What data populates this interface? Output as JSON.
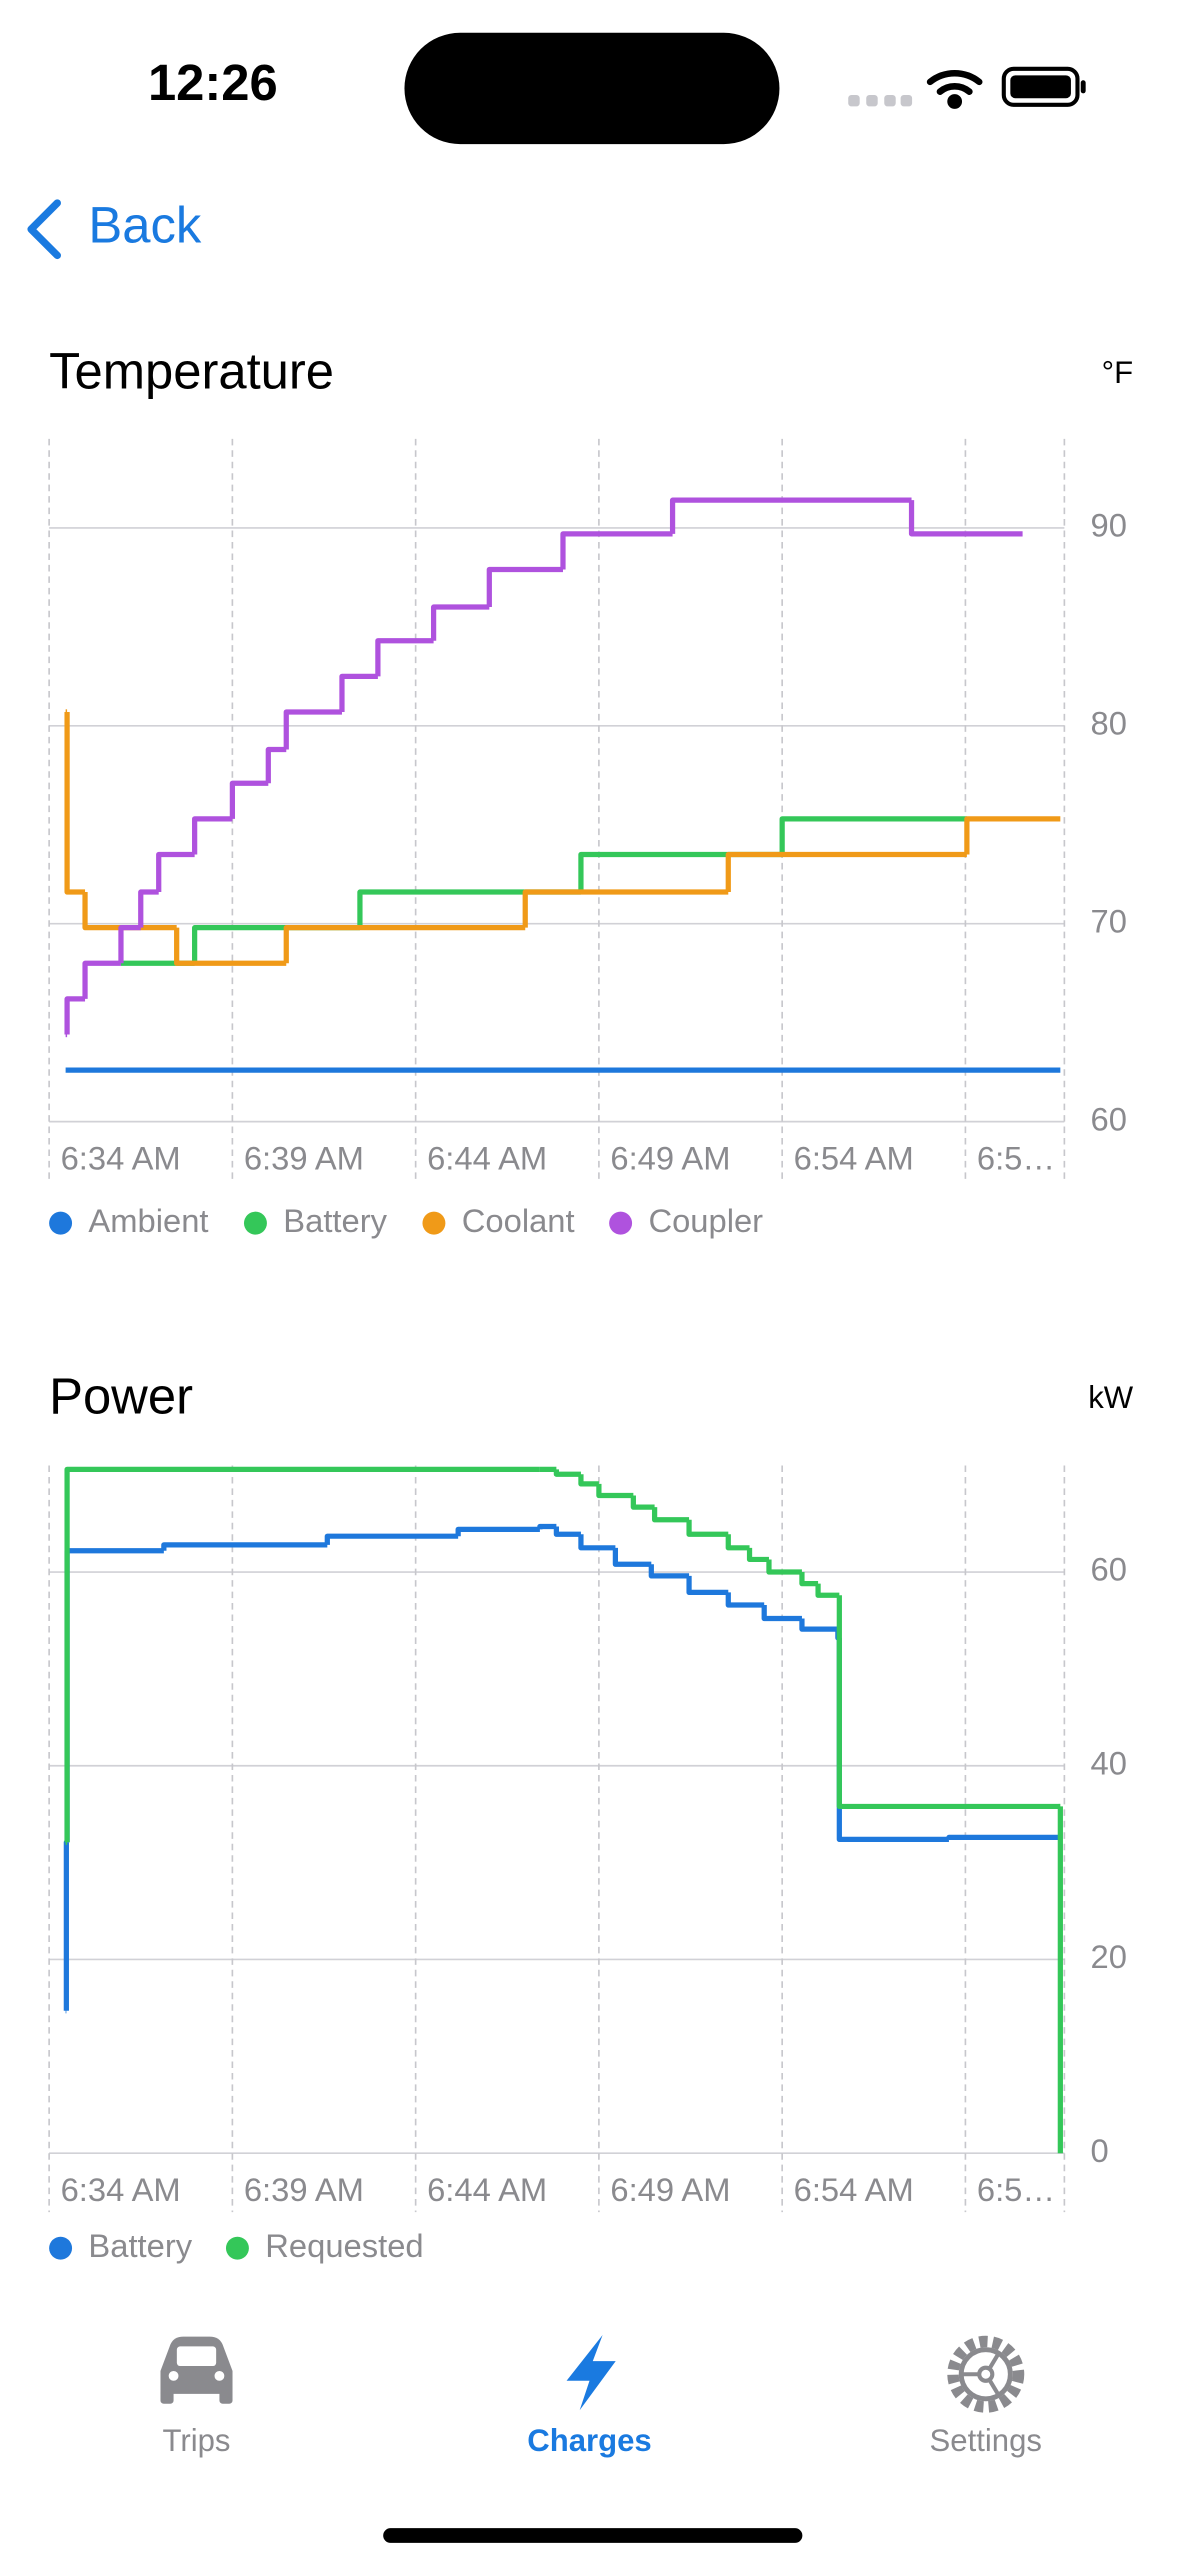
{
  "status_bar": {
    "time": "12:26"
  },
  "nav": {
    "back": "Back"
  },
  "chart_data": [
    {
      "type": "line",
      "title": "Temperature",
      "unit": "°F",
      "step": "after",
      "grid": true,
      "xlim": [
        394,
        421.7
      ],
      "ylim": [
        60,
        94.5
      ],
      "xticks": [
        {
          "value": 394,
          "label": "6:34 AM"
        },
        {
          "value": 399,
          "label": "6:39 AM"
        },
        {
          "value": 404,
          "label": "6:44 AM"
        },
        {
          "value": 409,
          "label": "6:49 AM"
        },
        {
          "value": 414,
          "label": "6:54 AM"
        },
        {
          "value": 419,
          "label": "6:5…"
        }
      ],
      "yticks": [
        60,
        70,
        80,
        90
      ],
      "series": [
        {
          "name": "Ambient",
          "color": "#1e78dc",
          "x": [
            394.45,
            421.59
          ],
          "values": [
            62.6,
            62.6
          ]
        },
        {
          "name": "Battery",
          "color": "#34c759",
          "x": [
            395.96,
            397.97,
            402.48,
            408.51,
            414.0,
            419.04
          ],
          "values": [
            68.0,
            69.8,
            71.6,
            73.5,
            75.3,
            75.3
          ]
        },
        {
          "name": "Coolant",
          "color": "#f09a18",
          "x": [
            394.45,
            394.49,
            394.98,
            397.48,
            400.47,
            406.99,
            412.53,
            419.04,
            421.59
          ],
          "values": [
            80.7,
            71.6,
            69.8,
            68.0,
            69.8,
            71.6,
            73.5,
            75.3,
            75.3
          ]
        },
        {
          "name": "Coupler",
          "color": "#af52de",
          "x": [
            394.45,
            394.49,
            394.98,
            395.96,
            396.5,
            396.99,
            397.97,
            399.0,
            399.98,
            400.47,
            401.99,
            402.97,
            404.49,
            406.01,
            408.02,
            411.01,
            417.53,
            420.56
          ],
          "values": [
            64.4,
            66.2,
            68.0,
            69.8,
            71.6,
            73.5,
            75.3,
            77.1,
            78.8,
            80.7,
            82.5,
            84.3,
            86.0,
            87.9,
            89.7,
            91.4,
            89.7,
            89.7
          ]
        }
      ]
    },
    {
      "type": "line",
      "title": "Power",
      "unit": "kW",
      "step": "after",
      "grid": true,
      "xlim": [
        394,
        421.7
      ],
      "ylim": [
        0,
        71
      ],
      "xticks": [
        {
          "value": 394,
          "label": "6:34 AM"
        },
        {
          "value": 399,
          "label": "6:39 AM"
        },
        {
          "value": 404,
          "label": "6:44 AM"
        },
        {
          "value": 409,
          "label": "6:49 AM"
        },
        {
          "value": 414,
          "label": "6:54 AM"
        },
        {
          "value": 419,
          "label": "6:5…"
        }
      ],
      "yticks": [
        0,
        20,
        40,
        60
      ],
      "series": [
        {
          "name": "Battery",
          "color": "#1e78dc",
          "x": [
            394.45,
            394.47,
            394.49,
            397.13,
            401.59,
            405.16,
            407.39,
            407.84,
            408.51,
            409.45,
            410.43,
            411.46,
            412.53,
            413.51,
            414.54,
            415.52,
            415.56,
            418.55,
            421.54
          ],
          "values": [
            14.7,
            32.1,
            62.2,
            62.8,
            63.7,
            64.4,
            64.7,
            63.9,
            62.5,
            60.8,
            59.6,
            57.9,
            56.6,
            55.2,
            54.1,
            53.2,
            32.4,
            32.6,
            32.6
          ]
        },
        {
          "name": "Requested",
          "color": "#34c759",
          "x": [
            394.45,
            394.49,
            407.39,
            407.84,
            408.51,
            409.0,
            409.94,
            410.52,
            411.46,
            412.53,
            413.11,
            413.64,
            414.54,
            414.98,
            415.56,
            421.54,
            421.59
          ],
          "values": [
            32.1,
            70.6,
            70.6,
            70.1,
            69.1,
            67.9,
            66.7,
            65.4,
            63.9,
            62.5,
            61.3,
            60.0,
            58.8,
            57.6,
            35.8,
            35.8,
            0
          ]
        }
      ]
    }
  ],
  "tab_bar": {
    "tabs": [
      "Trips",
      "Charges",
      "Settings"
    ],
    "selected": 1
  }
}
